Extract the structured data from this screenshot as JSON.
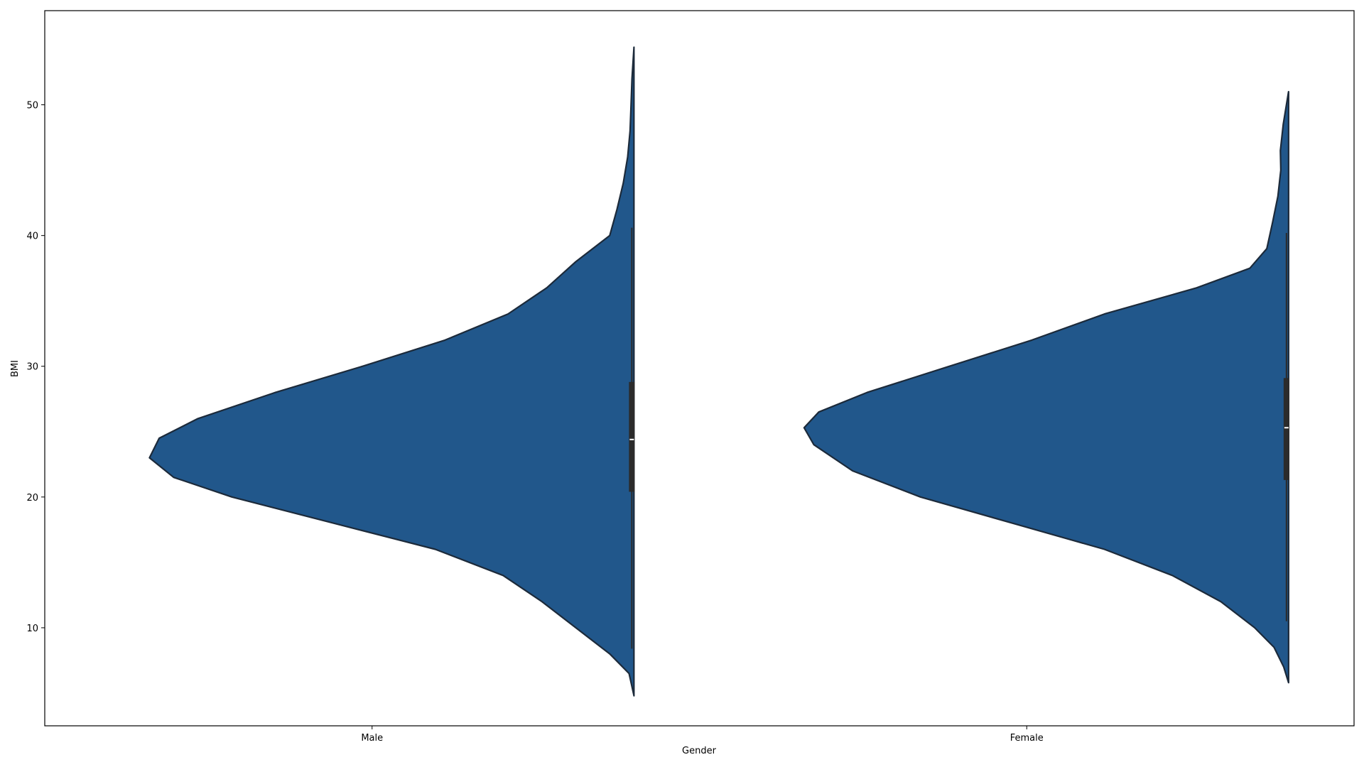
{
  "chart_data": {
    "type": "violin",
    "xlabel": "Gender",
    "ylabel": "BMI",
    "categories": [
      "Male",
      "Female"
    ],
    "ylim": [
      2.5,
      57.2
    ],
    "yticks": [
      10,
      20,
      30,
      40,
      50
    ],
    "grid": false,
    "violin_side": "left",
    "colors": {
      "fill": "#21578b",
      "edge": "#1c2a3a",
      "box": "#2b2b2b",
      "median": "#ffffff",
      "frame": "#000000"
    },
    "series": [
      {
        "category": "Male",
        "density_profile": [
          {
            "bmi": 4.8,
            "width": 0.0
          },
          {
            "bmi": 6.5,
            "width": 0.01
          },
          {
            "bmi": 8.0,
            "width": 0.05
          },
          {
            "bmi": 10.0,
            "width": 0.12
          },
          {
            "bmi": 12.0,
            "width": 0.19
          },
          {
            "bmi": 14.0,
            "width": 0.27
          },
          {
            "bmi": 16.0,
            "width": 0.41
          },
          {
            "bmi": 18.0,
            "width": 0.62
          },
          {
            "bmi": 20.0,
            "width": 0.83
          },
          {
            "bmi": 21.5,
            "width": 0.95
          },
          {
            "bmi": 23.0,
            "width": 1.0
          },
          {
            "bmi": 24.5,
            "width": 0.98
          },
          {
            "bmi": 26.0,
            "width": 0.9
          },
          {
            "bmi": 28.0,
            "width": 0.74
          },
          {
            "bmi": 30.0,
            "width": 0.56
          },
          {
            "bmi": 32.0,
            "width": 0.39
          },
          {
            "bmi": 34.0,
            "width": 0.26
          },
          {
            "bmi": 36.0,
            "width": 0.18
          },
          {
            "bmi": 38.0,
            "width": 0.12
          },
          {
            "bmi": 40.0,
            "width": 0.05
          },
          {
            "bmi": 42.0,
            "width": 0.035
          },
          {
            "bmi": 44.0,
            "width": 0.022
          },
          {
            "bmi": 46.0,
            "width": 0.013
          },
          {
            "bmi": 48.0,
            "width": 0.008
          },
          {
            "bmi": 50.0,
            "width": 0.006
          },
          {
            "bmi": 52.0,
            "width": 0.004
          },
          {
            "bmi": 54.4,
            "width": 0.0
          }
        ],
        "whisker_low": 8.4,
        "q1": 20.4,
        "median": 24.4,
        "q3": 28.8,
        "whisker_high": 40.6
      },
      {
        "category": "Female",
        "density_profile": [
          {
            "bmi": 5.8,
            "width": 0.0
          },
          {
            "bmi": 7.0,
            "width": 0.01
          },
          {
            "bmi": 8.5,
            "width": 0.03
          },
          {
            "bmi": 10.0,
            "width": 0.07
          },
          {
            "bmi": 12.0,
            "width": 0.14
          },
          {
            "bmi": 14.0,
            "width": 0.24
          },
          {
            "bmi": 16.0,
            "width": 0.38
          },
          {
            "bmi": 18.0,
            "width": 0.57
          },
          {
            "bmi": 20.0,
            "width": 0.76
          },
          {
            "bmi": 22.0,
            "width": 0.9
          },
          {
            "bmi": 24.0,
            "width": 0.98
          },
          {
            "bmi": 25.3,
            "width": 1.0
          },
          {
            "bmi": 26.5,
            "width": 0.97
          },
          {
            "bmi": 28.0,
            "width": 0.87
          },
          {
            "bmi": 30.0,
            "width": 0.7
          },
          {
            "bmi": 32.0,
            "width": 0.53
          },
          {
            "bmi": 34.0,
            "width": 0.38
          },
          {
            "bmi": 36.0,
            "width": 0.19
          },
          {
            "bmi": 37.5,
            "width": 0.08
          },
          {
            "bmi": 39.0,
            "width": 0.045
          },
          {
            "bmi": 41.0,
            "width": 0.033
          },
          {
            "bmi": 43.0,
            "width": 0.022
          },
          {
            "bmi": 45.0,
            "width": 0.016
          },
          {
            "bmi": 46.5,
            "width": 0.017
          },
          {
            "bmi": 48.5,
            "width": 0.011
          },
          {
            "bmi": 51.0,
            "width": 0.0
          }
        ],
        "whisker_low": 10.5,
        "q1": 21.3,
        "median": 25.3,
        "q3": 29.1,
        "whisker_high": 40.2
      }
    ]
  }
}
